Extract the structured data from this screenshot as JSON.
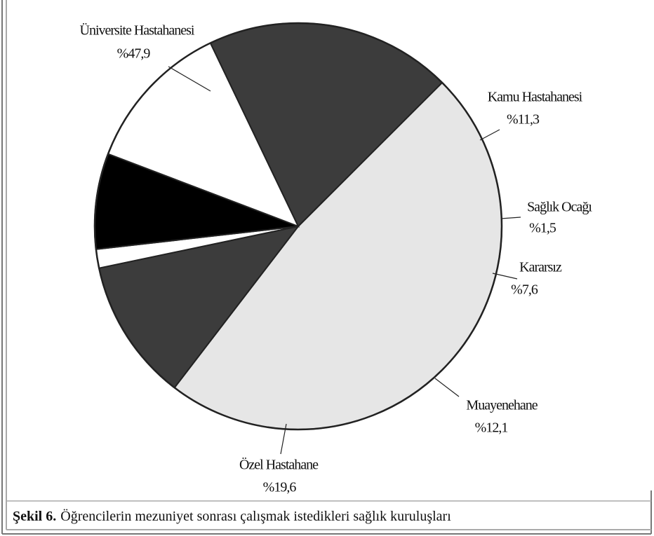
{
  "chart_data": {
    "type": "pie",
    "categories": [
      "Üniversite Hastahanesi",
      "Kamu Hastahanesi",
      "Sağlık Ocağı",
      "Kararsız",
      "Muayenehane",
      "Özel Hastahane"
    ],
    "values": [
      47.9,
      11.3,
      1.5,
      7.6,
      12.1,
      19.6
    ],
    "value_labels": [
      "%47,9",
      "%11,3",
      "%1,5",
      "%7,6",
      "%12,1",
      "%19,6"
    ],
    "colors": [
      "#e6e6e6",
      "#3c3c3c",
      "#ffffff",
      "#000000",
      "#ffffff",
      "#3c3c3c"
    ],
    "caption_label": "Şekil 6.",
    "caption_text": "Öğrencilerin mezuniyet sonrası çalışmak istedikleri sağlık kuruluşları"
  }
}
